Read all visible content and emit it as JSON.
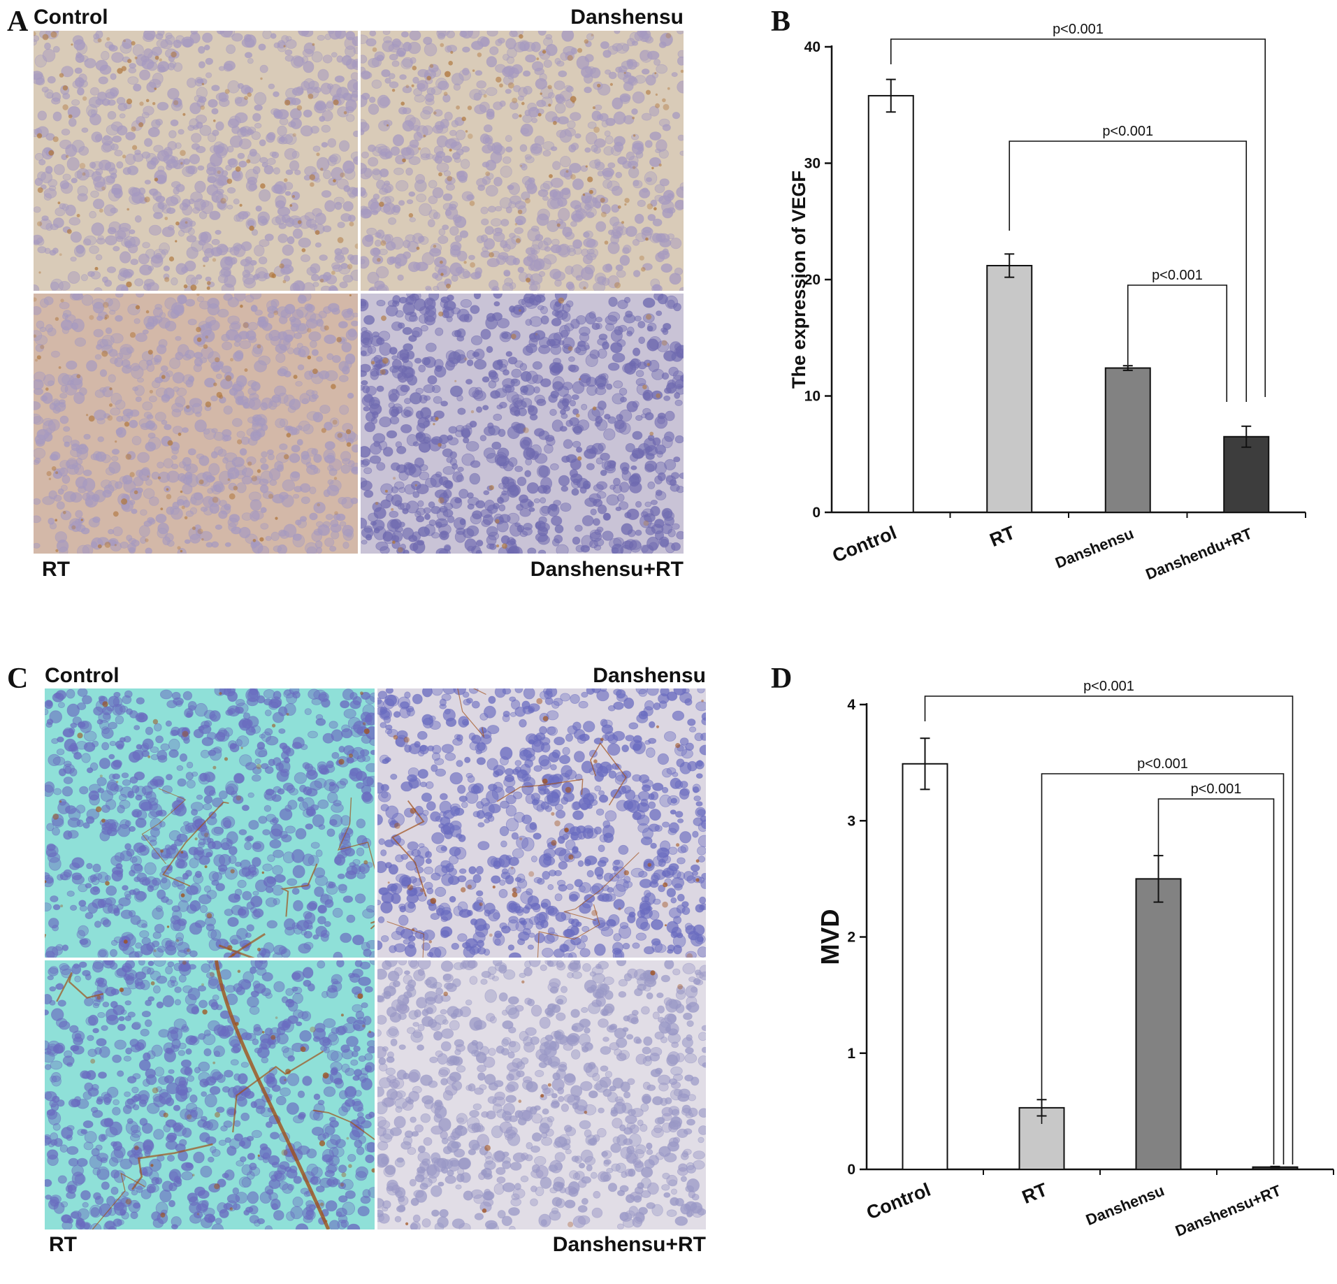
{
  "panels": {
    "A": {
      "letter": "A",
      "labels": {
        "top_left": "Control",
        "top_right": "Danshensu",
        "bottom_left": "RT",
        "bottom_right": "Danshensu+RT"
      }
    },
    "C": {
      "letter": "C",
      "labels": {
        "top_left": "Control",
        "top_right": "Danshensu",
        "bottom_left": "RT",
        "bottom_right": "Danshensu+RT"
      }
    },
    "B": {
      "letter": "B"
    },
    "D": {
      "letter": "D"
    }
  },
  "colors": {
    "bar_fills": [
      "#ffffff",
      "#c8c8c8",
      "#828282",
      "#3d3d3d"
    ],
    "stain_A": {
      "bg": "#d9cbb8",
      "nucleus": "#a69ac0",
      "brown": "#b07840"
    },
    "stain_C": {
      "bg_teal": "#8fe0d8",
      "bg_white": "#dcd7e2",
      "nucleus": "#6a6cc0",
      "brown": "#a0501a"
    }
  },
  "chart_data": [
    {
      "panel": "B",
      "type": "bar",
      "categories": [
        "Control",
        "RT",
        "Danshensu",
        "Danshendu+RT"
      ],
      "values": [
        35.8,
        21.2,
        12.4,
        6.5
      ],
      "errors": [
        1.4,
        1.0,
        0.2,
        0.9
      ],
      "ylabel": "The expression of VEGF",
      "ylim": [
        0,
        40
      ],
      "yticks": [
        0,
        10,
        20,
        30,
        40
      ],
      "grid": false,
      "comparisons": [
        {
          "from": 0,
          "to": 3,
          "label": "p<0.001"
        },
        {
          "from": 1,
          "to": 3,
          "label": "p<0.001"
        },
        {
          "from": 2,
          "to": 3,
          "label": "p<0.001"
        }
      ]
    },
    {
      "panel": "D",
      "type": "bar",
      "categories": [
        "Control",
        "RT",
        "Danshensu",
        "Danshensu+RT"
      ],
      "values": [
        3.49,
        0.53,
        2.5,
        0.02
      ],
      "errors": [
        0.22,
        0.07,
        0.2,
        0.005
      ],
      "ylabel": "MVD",
      "ylim": [
        0,
        4
      ],
      "yticks": [
        0,
        1,
        2,
        3,
        4
      ],
      "grid": false,
      "comparisons": [
        {
          "from": 0,
          "to": 3,
          "label": "p<0.001"
        },
        {
          "from": 1,
          "to": 3,
          "label": "p<0.001"
        },
        {
          "from": 2,
          "to": 3,
          "label": "p<0.001"
        }
      ]
    }
  ]
}
